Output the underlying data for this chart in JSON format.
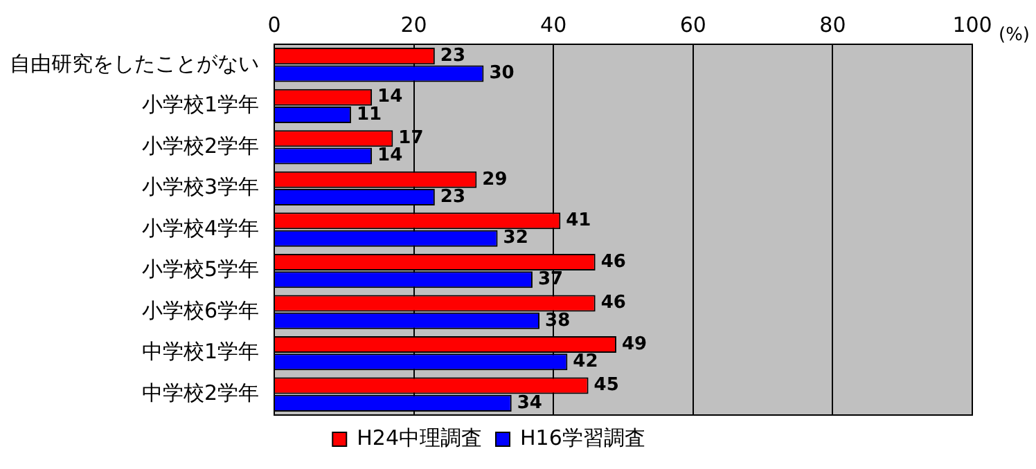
{
  "chart_data": {
    "type": "bar",
    "orientation": "horizontal",
    "xlabel": "(%)",
    "categories": [
      "自由研究をしたことがない",
      "小学校1学年",
      "小学校2学年",
      "小学校3学年",
      "小学校4学年",
      "小学校5学年",
      "小学校6学年",
      "中学校1学年",
      "中学校2学年"
    ],
    "series": [
      {
        "name": "H24中理調査",
        "color": "#ff0000",
        "values": [
          23,
          14,
          17,
          29,
          41,
          46,
          46,
          49,
          45
        ]
      },
      {
        "name": "H16学習調査",
        "color": "#0000ff",
        "values": [
          30,
          11,
          14,
          23,
          32,
          37,
          38,
          42,
          34
        ]
      }
    ],
    "xlim": [
      0,
      100
    ],
    "xticks": [
      0,
      20,
      40,
      60,
      80,
      100
    ],
    "grid": "x",
    "legend": "bottom",
    "data_labels": true
  }
}
